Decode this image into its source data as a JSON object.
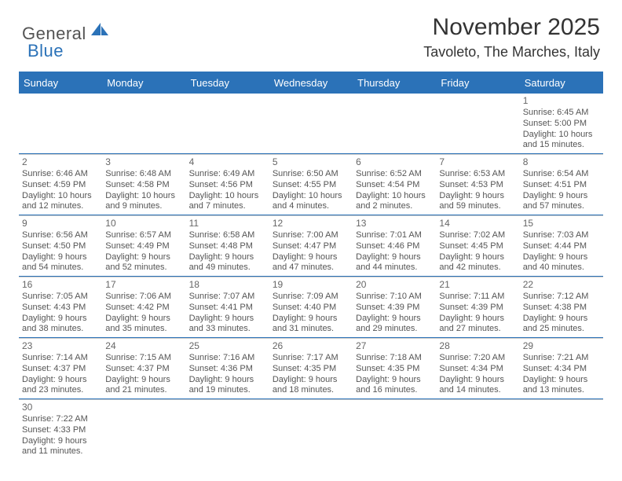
{
  "logo": {
    "part1": "General",
    "part2": "Blue"
  },
  "title": "November 2025",
  "location": "Tavoleto, The Marches, Italy",
  "colors": {
    "brand": "#2b72b8",
    "text": "#333333",
    "muted": "#555555",
    "divider": "#cccccc"
  },
  "dayNames": [
    "Sunday",
    "Monday",
    "Tuesday",
    "Wednesday",
    "Thursday",
    "Friday",
    "Saturday"
  ],
  "weeks": [
    [
      null,
      null,
      null,
      null,
      null,
      null,
      {
        "n": "1",
        "sunrise": "Sunrise: 6:45 AM",
        "sunset": "Sunset: 5:00 PM",
        "day1": "Daylight: 10 hours",
        "day2": "and 15 minutes."
      }
    ],
    [
      {
        "n": "2",
        "sunrise": "Sunrise: 6:46 AM",
        "sunset": "Sunset: 4:59 PM",
        "day1": "Daylight: 10 hours",
        "day2": "and 12 minutes."
      },
      {
        "n": "3",
        "sunrise": "Sunrise: 6:48 AM",
        "sunset": "Sunset: 4:58 PM",
        "day1": "Daylight: 10 hours",
        "day2": "and 9 minutes."
      },
      {
        "n": "4",
        "sunrise": "Sunrise: 6:49 AM",
        "sunset": "Sunset: 4:56 PM",
        "day1": "Daylight: 10 hours",
        "day2": "and 7 minutes."
      },
      {
        "n": "5",
        "sunrise": "Sunrise: 6:50 AM",
        "sunset": "Sunset: 4:55 PM",
        "day1": "Daylight: 10 hours",
        "day2": "and 4 minutes."
      },
      {
        "n": "6",
        "sunrise": "Sunrise: 6:52 AM",
        "sunset": "Sunset: 4:54 PM",
        "day1": "Daylight: 10 hours",
        "day2": "and 2 minutes."
      },
      {
        "n": "7",
        "sunrise": "Sunrise: 6:53 AM",
        "sunset": "Sunset: 4:53 PM",
        "day1": "Daylight: 9 hours",
        "day2": "and 59 minutes."
      },
      {
        "n": "8",
        "sunrise": "Sunrise: 6:54 AM",
        "sunset": "Sunset: 4:51 PM",
        "day1": "Daylight: 9 hours",
        "day2": "and 57 minutes."
      }
    ],
    [
      {
        "n": "9",
        "sunrise": "Sunrise: 6:56 AM",
        "sunset": "Sunset: 4:50 PM",
        "day1": "Daylight: 9 hours",
        "day2": "and 54 minutes."
      },
      {
        "n": "10",
        "sunrise": "Sunrise: 6:57 AM",
        "sunset": "Sunset: 4:49 PM",
        "day1": "Daylight: 9 hours",
        "day2": "and 52 minutes."
      },
      {
        "n": "11",
        "sunrise": "Sunrise: 6:58 AM",
        "sunset": "Sunset: 4:48 PM",
        "day1": "Daylight: 9 hours",
        "day2": "and 49 minutes."
      },
      {
        "n": "12",
        "sunrise": "Sunrise: 7:00 AM",
        "sunset": "Sunset: 4:47 PM",
        "day1": "Daylight: 9 hours",
        "day2": "and 47 minutes."
      },
      {
        "n": "13",
        "sunrise": "Sunrise: 7:01 AM",
        "sunset": "Sunset: 4:46 PM",
        "day1": "Daylight: 9 hours",
        "day2": "and 44 minutes."
      },
      {
        "n": "14",
        "sunrise": "Sunrise: 7:02 AM",
        "sunset": "Sunset: 4:45 PM",
        "day1": "Daylight: 9 hours",
        "day2": "and 42 minutes."
      },
      {
        "n": "15",
        "sunrise": "Sunrise: 7:03 AM",
        "sunset": "Sunset: 4:44 PM",
        "day1": "Daylight: 9 hours",
        "day2": "and 40 minutes."
      }
    ],
    [
      {
        "n": "16",
        "sunrise": "Sunrise: 7:05 AM",
        "sunset": "Sunset: 4:43 PM",
        "day1": "Daylight: 9 hours",
        "day2": "and 38 minutes."
      },
      {
        "n": "17",
        "sunrise": "Sunrise: 7:06 AM",
        "sunset": "Sunset: 4:42 PM",
        "day1": "Daylight: 9 hours",
        "day2": "and 35 minutes."
      },
      {
        "n": "18",
        "sunrise": "Sunrise: 7:07 AM",
        "sunset": "Sunset: 4:41 PM",
        "day1": "Daylight: 9 hours",
        "day2": "and 33 minutes."
      },
      {
        "n": "19",
        "sunrise": "Sunrise: 7:09 AM",
        "sunset": "Sunset: 4:40 PM",
        "day1": "Daylight: 9 hours",
        "day2": "and 31 minutes."
      },
      {
        "n": "20",
        "sunrise": "Sunrise: 7:10 AM",
        "sunset": "Sunset: 4:39 PM",
        "day1": "Daylight: 9 hours",
        "day2": "and 29 minutes."
      },
      {
        "n": "21",
        "sunrise": "Sunrise: 7:11 AM",
        "sunset": "Sunset: 4:39 PM",
        "day1": "Daylight: 9 hours",
        "day2": "and 27 minutes."
      },
      {
        "n": "22",
        "sunrise": "Sunrise: 7:12 AM",
        "sunset": "Sunset: 4:38 PM",
        "day1": "Daylight: 9 hours",
        "day2": "and 25 minutes."
      }
    ],
    [
      {
        "n": "23",
        "sunrise": "Sunrise: 7:14 AM",
        "sunset": "Sunset: 4:37 PM",
        "day1": "Daylight: 9 hours",
        "day2": "and 23 minutes."
      },
      {
        "n": "24",
        "sunrise": "Sunrise: 7:15 AM",
        "sunset": "Sunset: 4:37 PM",
        "day1": "Daylight: 9 hours",
        "day2": "and 21 minutes."
      },
      {
        "n": "25",
        "sunrise": "Sunrise: 7:16 AM",
        "sunset": "Sunset: 4:36 PM",
        "day1": "Daylight: 9 hours",
        "day2": "and 19 minutes."
      },
      {
        "n": "26",
        "sunrise": "Sunrise: 7:17 AM",
        "sunset": "Sunset: 4:35 PM",
        "day1": "Daylight: 9 hours",
        "day2": "and 18 minutes."
      },
      {
        "n": "27",
        "sunrise": "Sunrise: 7:18 AM",
        "sunset": "Sunset: 4:35 PM",
        "day1": "Daylight: 9 hours",
        "day2": "and 16 minutes."
      },
      {
        "n": "28",
        "sunrise": "Sunrise: 7:20 AM",
        "sunset": "Sunset: 4:34 PM",
        "day1": "Daylight: 9 hours",
        "day2": "and 14 minutes."
      },
      {
        "n": "29",
        "sunrise": "Sunrise: 7:21 AM",
        "sunset": "Sunset: 4:34 PM",
        "day1": "Daylight: 9 hours",
        "day2": "and 13 minutes."
      }
    ],
    [
      {
        "n": "30",
        "sunrise": "Sunrise: 7:22 AM",
        "sunset": "Sunset: 4:33 PM",
        "day1": "Daylight: 9 hours",
        "day2": "and 11 minutes."
      },
      null,
      null,
      null,
      null,
      null,
      null
    ]
  ]
}
